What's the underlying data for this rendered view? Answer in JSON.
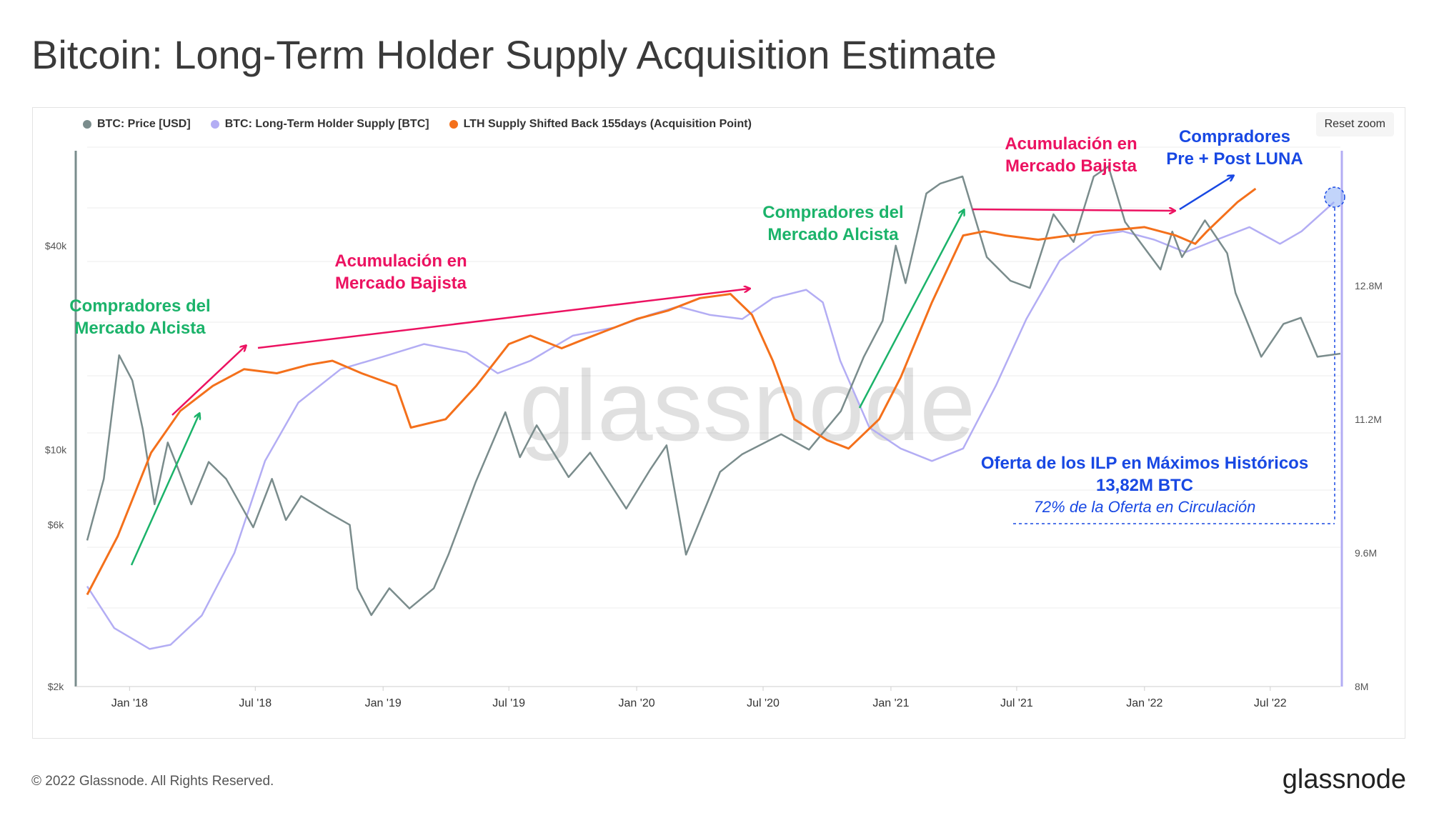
{
  "title": "Bitcoin: Long-Term Holder Supply Acquisition Estimate",
  "reset_zoom": "Reset zoom",
  "watermark": "glassnode",
  "footer": {
    "copyright": "© 2022 Glassnode. All Rights Reserved.",
    "brand": "glassnode"
  },
  "colors": {
    "price": "#7a8c8c",
    "lth": "#b3adf4",
    "shifted": "#f4701b",
    "green": "#1bb36a",
    "red": "#ec1261",
    "blue": "#1848e3"
  },
  "chart_data": {
    "type": "line",
    "x_ticks": [
      "Jan '18",
      "Jul '18",
      "Jan '19",
      "Jul '19",
      "Jan '20",
      "Jul '20",
      "Jan '21",
      "Jul '21",
      "Jan '22",
      "Jul '22"
    ],
    "y_left_ticks": [
      "$40k",
      "$10k",
      "$6k",
      "$2k"
    ],
    "y_right_ticks": [
      "12.8M",
      "11.2M",
      "9.6M",
      "8M"
    ],
    "y_left_scale": "log",
    "y_left_range": [
      2000,
      80000
    ],
    "y_right_range": [
      8000000,
      14500000
    ],
    "x_range": [
      "2017-11-01",
      "2022-10-10"
    ],
    "grid": true,
    "legend_position": "top-left",
    "series": [
      {
        "name": "BTC: Price [USD]",
        "color": "#7a8c8c",
        "points": [
          [
            "2017-11-01",
            5400
          ],
          [
            "2017-11-25",
            8200
          ],
          [
            "2017-12-17",
            19000
          ],
          [
            "2018-01-05",
            16000
          ],
          [
            "2018-01-20",
            11500
          ],
          [
            "2018-02-06",
            6900
          ],
          [
            "2018-02-25",
            10500
          ],
          [
            "2018-03-10",
            9000
          ],
          [
            "2018-03-31",
            6900
          ],
          [
            "2018-04-25",
            9200
          ],
          [
            "2018-05-20",
            8200
          ],
          [
            "2018-06-28",
            5900
          ],
          [
            "2018-07-25",
            8200
          ],
          [
            "2018-08-14",
            6200
          ],
          [
            "2018-09-05",
            7300
          ],
          [
            "2018-10-15",
            6500
          ],
          [
            "2018-11-14",
            6000
          ],
          [
            "2018-11-25",
            3900
          ],
          [
            "2018-12-15",
            3250
          ],
          [
            "2019-01-10",
            3900
          ],
          [
            "2019-02-08",
            3400
          ],
          [
            "2019-03-15",
            3900
          ],
          [
            "2019-04-05",
            4900
          ],
          [
            "2019-05-14",
            8000
          ],
          [
            "2019-06-26",
            12900
          ],
          [
            "2019-07-17",
            9500
          ],
          [
            "2019-08-10",
            11800
          ],
          [
            "2019-09-25",
            8300
          ],
          [
            "2019-10-26",
            9800
          ],
          [
            "2019-12-17",
            6700
          ],
          [
            "2020-01-20",
            8700
          ],
          [
            "2020-02-13",
            10300
          ],
          [
            "2020-03-12",
            4900
          ],
          [
            "2020-04-30",
            8600
          ],
          [
            "2020-06-01",
            9700
          ],
          [
            "2020-07-27",
            11100
          ],
          [
            "2020-09-05",
            10000
          ],
          [
            "2020-10-21",
            13000
          ],
          [
            "2020-11-23",
            18800
          ],
          [
            "2020-12-20",
            24000
          ],
          [
            "2021-01-08",
            40000
          ],
          [
            "2021-01-22",
            31000
          ],
          [
            "2021-02-21",
            57000
          ],
          [
            "2021-03-13",
            61000
          ],
          [
            "2021-04-14",
            64000
          ],
          [
            "2021-05-19",
            37000
          ],
          [
            "2021-06-22",
            31500
          ],
          [
            "2021-07-20",
            30000
          ],
          [
            "2021-08-23",
            49500
          ],
          [
            "2021-09-21",
            41000
          ],
          [
            "2021-10-20",
            64000
          ],
          [
            "2021-11-10",
            68500
          ],
          [
            "2021-12-04",
            47000
          ],
          [
            "2022-01-24",
            34000
          ],
          [
            "2022-02-10",
            44000
          ],
          [
            "2022-02-24",
            37000
          ],
          [
            "2022-03-29",
            47500
          ],
          [
            "2022-04-30",
            38000
          ],
          [
            "2022-05-12",
            29000
          ],
          [
            "2022-06-18",
            18800
          ],
          [
            "2022-07-20",
            23500
          ],
          [
            "2022-08-14",
            24500
          ],
          [
            "2022-09-07",
            18800
          ],
          [
            "2022-10-10",
            19200
          ]
        ]
      },
      {
        "name": "BTC: Long-Term Holder Supply [BTC]",
        "color": "#b3adf4",
        "points": [
          [
            "2017-11-01",
            9200000
          ],
          [
            "2017-12-10",
            8700000
          ],
          [
            "2018-01-30",
            8450000
          ],
          [
            "2018-03-01",
            8500000
          ],
          [
            "2018-04-15",
            8850000
          ],
          [
            "2018-06-01",
            9600000
          ],
          [
            "2018-07-15",
            10700000
          ],
          [
            "2018-09-01",
            11400000
          ],
          [
            "2018-11-01",
            11800000
          ],
          [
            "2019-01-01",
            11950000
          ],
          [
            "2019-03-01",
            12100000
          ],
          [
            "2019-05-01",
            12000000
          ],
          [
            "2019-06-15",
            11750000
          ],
          [
            "2019-08-01",
            11900000
          ],
          [
            "2019-10-01",
            12200000
          ],
          [
            "2019-12-01",
            12300000
          ],
          [
            "2020-01-20",
            12450000
          ],
          [
            "2020-03-01",
            12550000
          ],
          [
            "2020-04-15",
            12450000
          ],
          [
            "2020-06-01",
            12400000
          ],
          [
            "2020-07-15",
            12650000
          ],
          [
            "2020-09-01",
            12750000
          ],
          [
            "2020-09-25",
            12600000
          ],
          [
            "2020-10-20",
            11900000
          ],
          [
            "2020-12-01",
            11100000
          ],
          [
            "2021-01-15",
            10850000
          ],
          [
            "2021-03-01",
            10700000
          ],
          [
            "2021-04-15",
            10850000
          ],
          [
            "2021-06-01",
            11600000
          ],
          [
            "2021-07-15",
            12400000
          ],
          [
            "2021-09-01",
            13100000
          ],
          [
            "2021-10-20",
            13400000
          ],
          [
            "2021-12-01",
            13450000
          ],
          [
            "2022-01-15",
            13350000
          ],
          [
            "2022-03-01",
            13200000
          ],
          [
            "2022-04-15",
            13350000
          ],
          [
            "2022-06-01",
            13500000
          ],
          [
            "2022-07-15",
            13300000
          ],
          [
            "2022-08-15",
            13450000
          ],
          [
            "2022-10-01",
            13800000
          ]
        ]
      },
      {
        "name": "LTH Supply Shifted Back 155days (Acquisition Point)",
        "color": "#f4701b",
        "points": [
          [
            "2017-11-01",
            9100000
          ],
          [
            "2017-12-15",
            9800000
          ],
          [
            "2018-02-01",
            10800000
          ],
          [
            "2018-03-15",
            11300000
          ],
          [
            "2018-05-01",
            11600000
          ],
          [
            "2018-06-15",
            11800000
          ],
          [
            "2018-08-01",
            11750000
          ],
          [
            "2018-09-15",
            11850000
          ],
          [
            "2018-10-20",
            11900000
          ],
          [
            "2018-12-01",
            11750000
          ],
          [
            "2019-01-20",
            11600000
          ],
          [
            "2019-02-10",
            11100000
          ],
          [
            "2019-04-01",
            11200000
          ],
          [
            "2019-05-15",
            11600000
          ],
          [
            "2019-07-01",
            12100000
          ],
          [
            "2019-08-01",
            12200000
          ],
          [
            "2019-09-15",
            12050000
          ],
          [
            "2019-10-15",
            12150000
          ],
          [
            "2019-11-15",
            12250000
          ],
          [
            "2020-01-01",
            12400000
          ],
          [
            "2020-02-15",
            12500000
          ],
          [
            "2020-04-01",
            12650000
          ],
          [
            "2020-05-15",
            12700000
          ],
          [
            "2020-06-15",
            12450000
          ],
          [
            "2020-07-15",
            11900000
          ],
          [
            "2020-08-15",
            11200000
          ],
          [
            "2020-10-01",
            10950000
          ],
          [
            "2020-11-01",
            10850000
          ],
          [
            "2020-12-15",
            11200000
          ],
          [
            "2021-01-15",
            11700000
          ],
          [
            "2021-03-01",
            12600000
          ],
          [
            "2021-04-15",
            13400000
          ],
          [
            "2021-05-15",
            13450000
          ],
          [
            "2021-06-15",
            13400000
          ],
          [
            "2021-08-01",
            13350000
          ],
          [
            "2021-09-15",
            13400000
          ],
          [
            "2021-11-01",
            13450000
          ],
          [
            "2022-01-01",
            13500000
          ],
          [
            "2022-02-15",
            13400000
          ],
          [
            "2022-03-15",
            13300000
          ],
          [
            "2022-04-01",
            13450000
          ],
          [
            "2022-05-15",
            13800000
          ],
          [
            "2022-06-10",
            13960000
          ]
        ]
      }
    ]
  },
  "annotations": [
    {
      "text": "Compradores del",
      "color": "green"
    },
    {
      "text": "Mercado Alcista",
      "color": "green"
    },
    {
      "text": "Acumulación en",
      "color": "red"
    },
    {
      "text": "Mercado Bajista",
      "color": "red"
    },
    {
      "text": "Compradores del",
      "color": "green"
    },
    {
      "text": "Mercado Alcista",
      "color": "green"
    },
    {
      "text": "Acumulación en",
      "color": "red"
    },
    {
      "text": "Mercado Bajista",
      "color": "red"
    },
    {
      "text": "Compradores",
      "color": "blue"
    },
    {
      "text": "Pre + Post LUNA",
      "color": "blue"
    },
    {
      "text": "Oferta de los ILP en Máximos Históricos",
      "color": "blue"
    },
    {
      "text": "13,82M BTC",
      "color": "blue"
    },
    {
      "text": "72% de la Oferta en Circulación",
      "color": "blue"
    }
  ]
}
